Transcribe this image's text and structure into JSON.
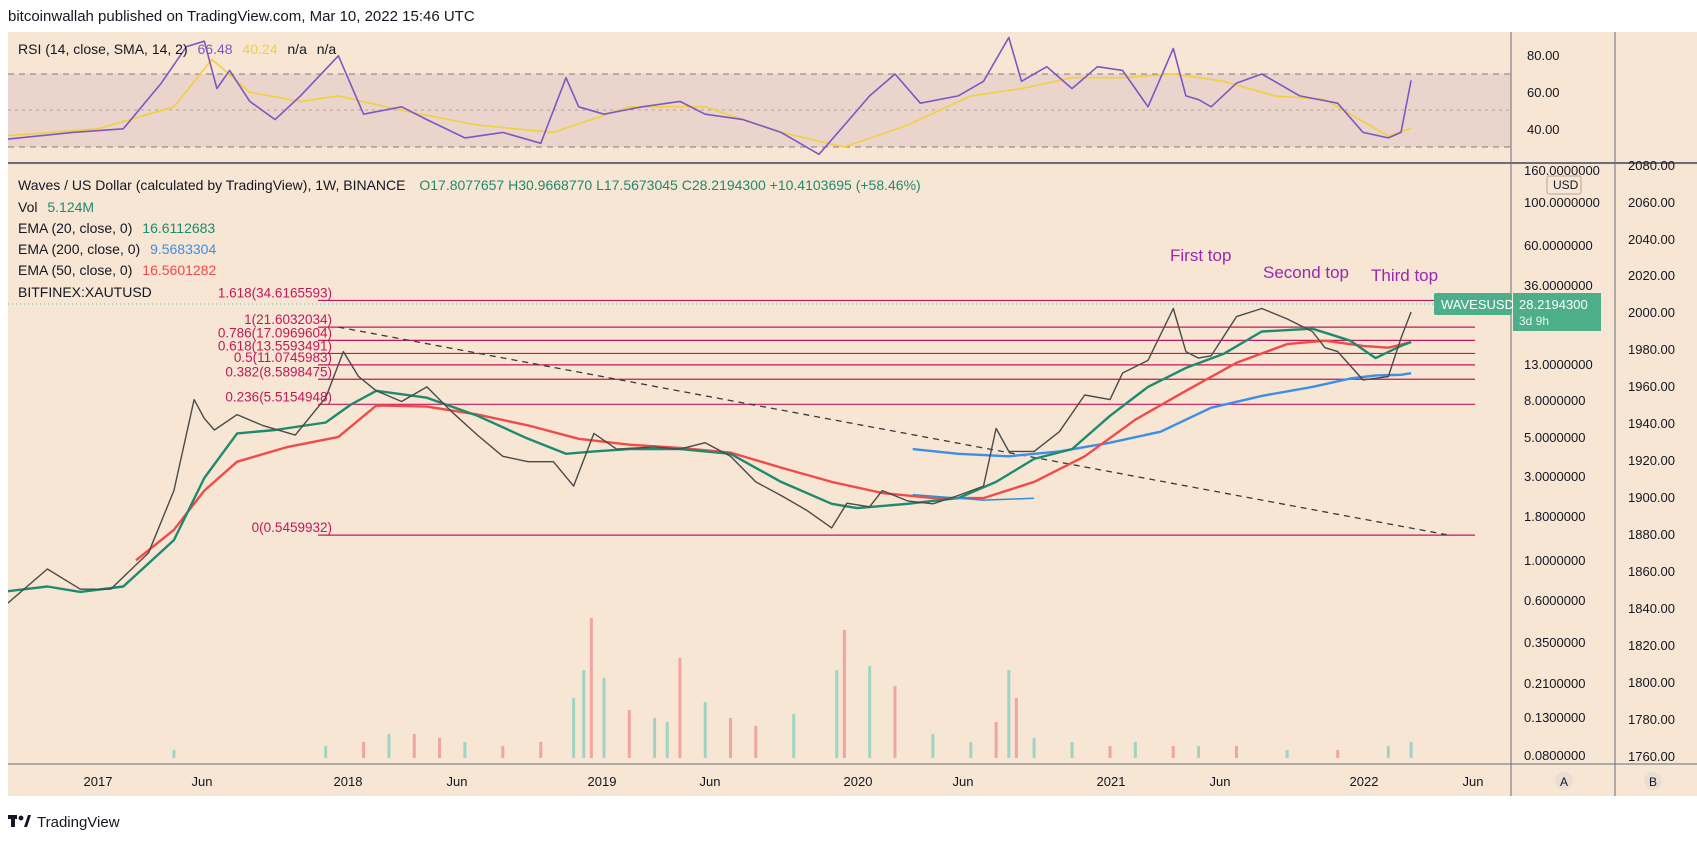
{
  "header": {
    "published": "bitcoinwallah published on TradingView.com, Mar 10, 2022 15:46 UTC"
  },
  "footer": {
    "brand": "TradingView"
  },
  "colors": {
    "background": "#f7e6d3",
    "up": "#26a69a",
    "down": "#ef5350",
    "ema20": "#1e8a6e",
    "ema50": "#f24a4a",
    "ema200": "#3d8ee6",
    "rsi": "#7e57c2",
    "rsi_sma": "#f2d03d",
    "fib": "#c2185b",
    "annotation": "#9c27b0"
  },
  "rsi_panel": {
    "legend": {
      "name": "RSI (14, close, SMA, 14, 2)",
      "rsi_value": "66.48",
      "sma_value": "40.24",
      "na1": "n/a",
      "na2": "n/a"
    },
    "ticks": [
      "80.00",
      "60.00",
      "40.00"
    ]
  },
  "legend": {
    "symbol": "Waves / US Dollar (calculated by TradingView), 1W, BINANCE",
    "ohlc": "O17.8077657  H30.9668770  L17.5673045  C28.2194300  +10.4103695 (+58.46%)",
    "vol_label": "Vol",
    "vol_value": "5.124M",
    "ema20_label": "EMA (20, close, 0)",
    "ema20_value": "16.6112683",
    "ema200_label": "EMA (200, close, 0)",
    "ema200_value": "9.5683304",
    "ema50_label": "EMA (50, close, 0)",
    "ema50_value": "16.5601282",
    "compare": "BITFINEX:XAUTUSD"
  },
  "price_axis": {
    "labels": [
      "160.0000000",
      "100.0000000",
      "60.0000000",
      "36.0000000",
      "13.0000000",
      "8.0000000",
      "5.0000000",
      "3.0000000",
      "1.8000000",
      "1.0000000",
      "0.6000000",
      "0.3500000",
      "0.2100000",
      "0.1300000",
      "0.0800000"
    ],
    "currency": "USD",
    "last_symbol": "WAVESUSD",
    "last_price": "28.2194300",
    "countdown": "3d 9h"
  },
  "secondary_axis": {
    "labels": [
      "2080.00",
      "2060.00",
      "2040.00",
      "2020.00",
      "2000.00",
      "1980.00",
      "1960.00",
      "1940.00",
      "1920.00",
      "1900.00",
      "1880.00",
      "1860.00",
      "1840.00",
      "1820.00",
      "1800.00",
      "1780.00",
      "1760.00"
    ]
  },
  "time_axis": {
    "labels": [
      "2017",
      "Jun",
      "2018",
      "Jun",
      "2019",
      "Jun",
      "2020",
      "Jun",
      "2021",
      "Jun",
      "2022",
      "Jun"
    ]
  },
  "scale_buttons": {
    "a": "A",
    "b": "B"
  },
  "fib_levels": [
    {
      "ratio": "1.618",
      "label": "1.618(34.6165593)",
      "value": 34.6165593
    },
    {
      "ratio": "1",
      "label": "1(21.6032034)",
      "value": 21.6032034
    },
    {
      "ratio": "0.786",
      "label": "0.786(17.0969604)",
      "value": 17.0969604
    },
    {
      "ratio": "0.618",
      "label": "0.618(13.5593491)",
      "value": 13.5593491
    },
    {
      "ratio": "0.5",
      "label": "0.5(11.0745983)",
      "value": 11.0745983
    },
    {
      "ratio": "0.382",
      "label": "0.382(8.5898475)",
      "value": 8.5898475
    },
    {
      "ratio": "0.236",
      "label": "0.236(5.5154948)",
      "value": 5.5154948
    },
    {
      "ratio": "0",
      "label": "0(0.5459932)",
      "value": 0.5459932
    }
  ],
  "annotations": [
    {
      "id": "first",
      "text": "First top"
    },
    {
      "id": "second",
      "text": "Second top"
    },
    {
      "id": "third",
      "text": "Third top"
    }
  ],
  "chart_data": {
    "type": "line",
    "log_scale": true,
    "x_unit": "year",
    "x_range": [
      2016.62,
      2022.5
    ],
    "y_range": [
      0.075,
      165
    ],
    "rsi_range": [
      22,
      92
    ],
    "rsi_levels": [
      30,
      50,
      70
    ],
    "series": [
      {
        "key": "price",
        "name": "WAVESUSD",
        "type": "line",
        "x": [
          2016.62,
          2016.8,
          2016.93,
          2017.05,
          2017.2,
          2017.3,
          2017.38,
          2017.42,
          2017.46,
          2017.55,
          2017.65,
          2017.78,
          2017.9,
          2017.97,
          2018.03,
          2018.1,
          2018.2,
          2018.3,
          2018.4,
          2018.5,
          2018.6,
          2018.7,
          2018.8,
          2018.88,
          2018.96,
          2019.05,
          2019.2,
          2019.3,
          2019.4,
          2019.5,
          2019.6,
          2019.7,
          2019.8,
          2019.9,
          2019.96,
          2020.05,
          2020.1,
          2020.2,
          2020.3,
          2020.4,
          2020.5,
          2020.55,
          2020.6,
          2020.7,
          2020.8,
          2020.9,
          2021.0,
          2021.05,
          2021.15,
          2021.25,
          2021.3,
          2021.35,
          2021.4,
          2021.5,
          2021.6,
          2021.7,
          2021.8,
          2021.85,
          2021.9,
          2022.0,
          2022.1,
          2022.15,
          2022.19
        ],
        "y": [
          0.15,
          0.3,
          0.21,
          0.21,
          0.4,
          1.2,
          6.0,
          4.3,
          3.5,
          4.6,
          3.8,
          3.2,
          6.2,
          14.0,
          9.0,
          7.0,
          5.8,
          7.5,
          4.8,
          3.2,
          2.2,
          2.0,
          2.0,
          1.3,
          3.3,
          2.5,
          2.6,
          2.5,
          2.8,
          2.2,
          1.4,
          1.1,
          0.85,
          0.62,
          0.96,
          0.9,
          1.2,
          1.0,
          0.95,
          1.1,
          1.3,
          3.6,
          2.4,
          2.4,
          3.4,
          6.5,
          6.0,
          9.6,
          12.0,
          30.0,
          14.0,
          12.5,
          13.0,
          26.0,
          30.0,
          25.0,
          20.0,
          15.0,
          14.0,
          8.5,
          9.0,
          17.8,
          28.22
        ]
      },
      {
        "key": "ema20",
        "name": "EMA (20, close, 0)",
        "type": "line",
        "x": [
          2016.62,
          2016.8,
          2016.93,
          2017.1,
          2017.3,
          2017.42,
          2017.55,
          2017.7,
          2017.9,
          2018.0,
          2018.1,
          2018.3,
          2018.5,
          2018.7,
          2018.85,
          2018.96,
          2019.1,
          2019.3,
          2019.5,
          2019.7,
          2019.9,
          2020.0,
          2020.2,
          2020.4,
          2020.55,
          2020.7,
          2020.85,
          2021.0,
          2021.15,
          2021.3,
          2021.45,
          2021.6,
          2021.8,
          2021.95,
          2022.05,
          2022.15,
          2022.19
        ],
        "y": [
          0.2,
          0.22,
          0.2,
          0.22,
          0.5,
          1.5,
          3.3,
          3.5,
          4.0,
          5.5,
          7.0,
          6.2,
          4.5,
          3.0,
          2.3,
          2.4,
          2.5,
          2.5,
          2.3,
          1.4,
          0.95,
          0.88,
          0.95,
          1.05,
          1.4,
          2.1,
          2.5,
          4.5,
          7.5,
          10.5,
          13.5,
          20.0,
          21.0,
          17.0,
          12.5,
          15.5,
          16.61
        ]
      },
      {
        "key": "ema50",
        "name": "EMA (50, close, 0)",
        "type": "line",
        "x": [
          2017.15,
          2017.3,
          2017.42,
          2017.55,
          2017.75,
          2017.95,
          2018.1,
          2018.3,
          2018.5,
          2018.7,
          2018.9,
          2019.1,
          2019.3,
          2019.5,
          2019.7,
          2019.9,
          2020.1,
          2020.3,
          2020.5,
          2020.7,
          2020.9,
          2021.1,
          2021.3,
          2021.5,
          2021.7,
          2021.85,
          2022.0,
          2022.1,
          2022.19
        ],
        "y": [
          0.35,
          0.6,
          1.2,
          2.0,
          2.6,
          3.1,
          5.4,
          5.3,
          4.6,
          3.8,
          3.0,
          2.7,
          2.55,
          2.35,
          1.8,
          1.4,
          1.15,
          1.05,
          1.05,
          1.4,
          2.2,
          4.2,
          7.0,
          11.5,
          16.0,
          17.0,
          15.5,
          15.0,
          16.56
        ]
      },
      {
        "key": "ema200",
        "name": "EMA (200, close, 0)",
        "type": "line",
        "x": [
          2020.22,
          2020.4,
          2020.6,
          2020.8,
          2021.0,
          2021.2,
          2021.4,
          2021.6,
          2021.8,
          2021.95,
          2022.05,
          2022.15,
          2022.19
        ],
        "y": [
          2.5,
          2.3,
          2.2,
          2.4,
          2.8,
          3.4,
          5.2,
          6.4,
          7.5,
          8.7,
          9.2,
          9.3,
          9.57
        ]
      },
      {
        "key": "trendline",
        "name": "",
        "type": "line",
        "x": [
          2017.95,
          2022.33
        ],
        "y": [
          21.6,
          0.55
        ]
      },
      {
        "key": "xautusd",
        "name": "BITFINEX:XAUTUSD",
        "type": "line",
        "y_unit": "USD",
        "x": [
          2020.22,
          2020.5,
          2020.7
        ],
        "y": [
          1904,
          1901,
          1902
        ]
      },
      {
        "key": "rsi",
        "name": "RSI (14, close, SMA, 14, 2)",
        "type": "line",
        "x": [
          2016.62,
          2016.9,
          2017.1,
          2017.25,
          2017.35,
          2017.42,
          2017.47,
          2017.52,
          2017.6,
          2017.7,
          2017.8,
          2017.95,
          2018.05,
          2018.2,
          2018.3,
          2018.45,
          2018.6,
          2018.75,
          2018.85,
          2018.9,
          2019.0,
          2019.15,
          2019.3,
          2019.4,
          2019.55,
          2019.7,
          2019.85,
          2019.95,
          2020.05,
          2020.15,
          2020.25,
          2020.4,
          2020.5,
          2020.6,
          2020.65,
          2020.75,
          2020.85,
          2020.95,
          2021.05,
          2021.15,
          2021.25,
          2021.3,
          2021.35,
          2021.4,
          2021.5,
          2021.6,
          2021.75,
          2021.9,
          2022.0,
          2022.1,
          2022.15,
          2022.19
        ],
        "y": [
          34,
          38,
          40,
          65,
          85,
          88,
          62,
          72,
          55,
          45,
          58,
          80,
          48,
          52,
          45,
          35,
          38,
          32,
          68,
          52,
          48,
          52,
          55,
          48,
          45,
          38,
          26,
          42,
          58,
          70,
          54,
          58,
          66,
          90,
          66,
          74,
          62,
          74,
          72,
          52,
          84,
          58,
          56,
          52,
          65,
          70,
          58,
          54,
          38,
          35,
          38,
          66.48
        ]
      },
      {
        "key": "rsi_sma",
        "name": "SMA",
        "type": "line",
        "x": [
          2016.62,
          2017.0,
          2017.3,
          2017.45,
          2017.6,
          2017.8,
          2017.95,
          2018.2,
          2018.5,
          2018.8,
          2019.1,
          2019.4,
          2019.7,
          2019.95,
          2020.2,
          2020.45,
          2020.65,
          2020.85,
          2021.05,
          2021.25,
          2021.45,
          2021.65,
          2021.85,
          2022.0,
          2022.1,
          2022.19
        ],
        "y": [
          36,
          40,
          52,
          78,
          60,
          55,
          58,
          50,
          42,
          38,
          52,
          52,
          38,
          30,
          42,
          58,
          62,
          68,
          68,
          70,
          66,
          58,
          56,
          44,
          36,
          40.24
        ]
      }
    ],
    "volume_bars": {
      "x": [
        2017.3,
        2017.9,
        2018.05,
        2018.15,
        2018.25,
        2018.35,
        2018.45,
        2018.6,
        2018.75,
        2018.88,
        2018.92,
        2018.95,
        2019.0,
        2019.1,
        2019.2,
        2019.25,
        2019.3,
        2019.4,
        2019.5,
        2019.6,
        2019.75,
        2019.92,
        2019.95,
        2020.05,
        2020.15,
        2020.3,
        2020.45,
        2020.55,
        2020.6,
        2020.63,
        2020.7,
        2020.85,
        2021.0,
        2021.1,
        2021.25,
        2021.35,
        2021.5,
        2021.7,
        2021.9,
        2022.1,
        2022.19
      ],
      "v": [
        0.2,
        0.3,
        0.4,
        0.6,
        0.6,
        0.5,
        0.4,
        0.3,
        0.4,
        1.5,
        2.2,
        3.5,
        2.0,
        1.2,
        1.0,
        0.9,
        2.5,
        1.4,
        1.0,
        0.8,
        1.1,
        2.2,
        3.2,
        2.3,
        1.8,
        0.6,
        0.4,
        0.9,
        2.2,
        1.5,
        0.5,
        0.4,
        0.3,
        0.4,
        0.3,
        0.3,
        0.3,
        0.2,
        0.2,
        0.3,
        0.4
      ],
      "down": [
        false,
        false,
        true,
        false,
        true,
        true,
        false,
        true,
        true,
        false,
        false,
        true,
        false,
        true,
        false,
        false,
        true,
        false,
        true,
        true,
        false,
        false,
        true,
        false,
        true,
        false,
        false,
        true,
        false,
        true,
        false,
        false,
        true,
        false,
        true,
        false,
        true,
        false,
        true,
        false,
        false
      ]
    }
  }
}
